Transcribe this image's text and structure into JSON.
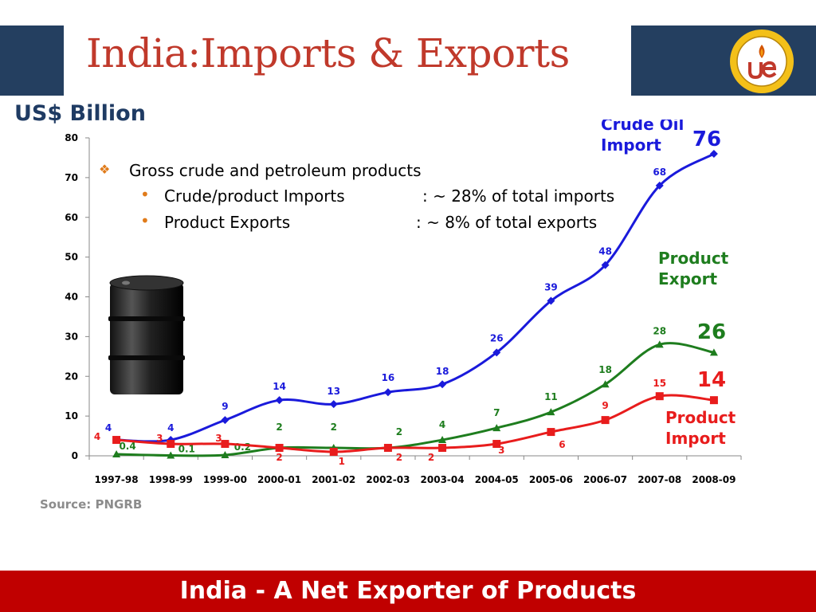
{
  "slide": {
    "title": "India:Imports & Exports",
    "units": "US$ Billion",
    "source": "Source: PNGRB",
    "footer": "India - A Net Exporter of Products"
  },
  "notes": {
    "heading": "Gross crude and petroleum products",
    "item1_label": "Crude/product Imports",
    "item1_value": ":  ~ 28% of total imports",
    "item2_label": "Product Exports",
    "item2_value": ":  ~   8% of total exports"
  },
  "colors": {
    "crude": "#1a1adb",
    "export": "#1e7d1e",
    "import": "#e81c1c",
    "header_band": "#243f60",
    "footer_band": "#c00000"
  },
  "chart_data": {
    "type": "line",
    "categories": [
      "1997-98",
      "1998-99",
      "1999-00",
      "2000-01",
      "2001-02",
      "2002-03",
      "2003-04",
      "2004-05",
      "2005-06",
      "2006-07",
      "2007-08",
      "2008-09"
    ],
    "ylim": [
      0,
      80
    ],
    "yticks": [
      0,
      10,
      20,
      30,
      40,
      50,
      60,
      70,
      80
    ],
    "grid": false,
    "series": [
      {
        "name": "Crude Oil Import",
        "values": [
          4,
          4,
          9,
          14,
          13,
          16,
          18,
          26,
          39,
          48,
          68,
          76
        ],
        "labels": [
          "4",
          "4",
          "9",
          "14",
          "13",
          "16",
          "18",
          "26",
          "39",
          "48",
          "68",
          "76"
        ]
      },
      {
        "name": "Product Export",
        "values": [
          0.4,
          0.1,
          0.2,
          2,
          2,
          2,
          4,
          7,
          11,
          18,
          28,
          26
        ],
        "labels": [
          "0.4",
          "0.1",
          "0.2",
          "2",
          "2",
          "2",
          "4",
          "7",
          "11",
          "18",
          "28",
          "26"
        ]
      },
      {
        "name": "Product Import",
        "values": [
          4,
          3,
          3,
          2,
          1,
          2,
          2,
          3,
          6,
          9,
          15,
          14
        ],
        "labels": [
          "4",
          "3",
          "3",
          "2",
          "1",
          "2",
          "2",
          "3",
          "6",
          "9",
          "15",
          "14"
        ]
      }
    ]
  }
}
